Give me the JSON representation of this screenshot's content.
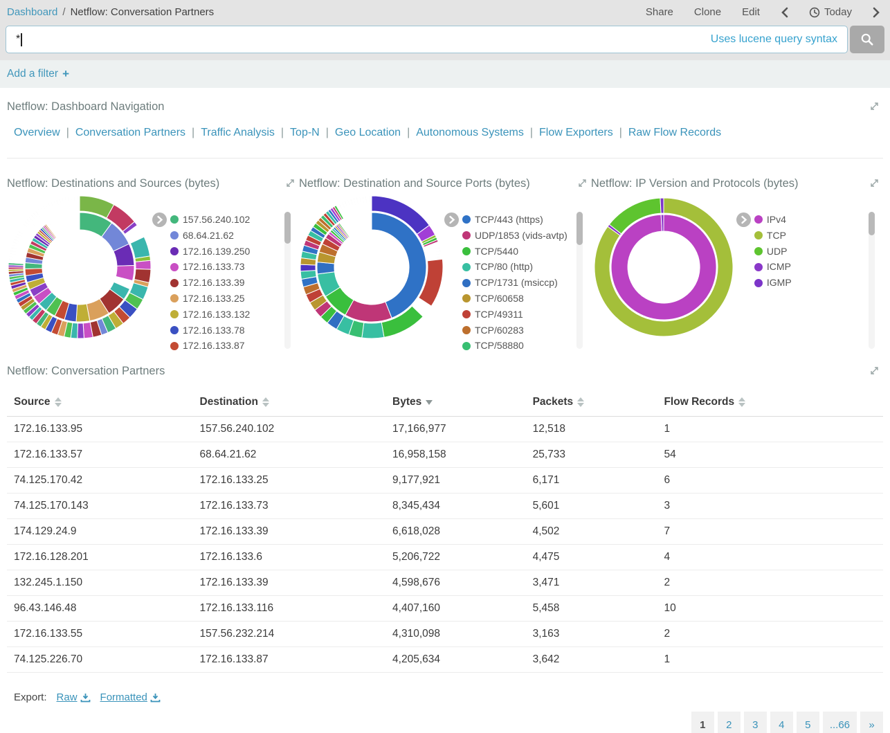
{
  "topbar": {
    "breadcrumb": {
      "root": "Dashboard",
      "separator": "/",
      "current": "Netflow: Conversation Partners"
    },
    "actions": [
      "Share",
      "Clone",
      "Edit"
    ],
    "time_label": "Today"
  },
  "query": {
    "value": "*",
    "hint": "Uses lucene query syntax"
  },
  "filter": {
    "add_label": "Add a filter"
  },
  "nav_panel": {
    "title": "Netflow: Dashboard Navigation",
    "links": [
      "Overview",
      "Conversation Partners",
      "Traffic Analysis",
      "Top-N",
      "Geo Location",
      "Autonomous Systems",
      "Flow Exporters",
      "Raw Flow Records"
    ]
  },
  "chart_data": [
    {
      "type": "sunburst",
      "title": "Netflow: Destinations and Sources (bytes)",
      "legend_position": "right",
      "legend": [
        {
          "label": "157.56.240.102",
          "color": "#43b77c"
        },
        {
          "label": "68.64.21.62",
          "color": "#7287d8"
        },
        {
          "label": "172.16.139.250",
          "color": "#6a2cb5"
        },
        {
          "label": "172.16.133.73",
          "color": "#c94fc4"
        },
        {
          "label": "172.16.133.39",
          "color": "#a13331"
        },
        {
          "label": "172.16.133.25",
          "color": "#daa05c"
        },
        {
          "label": "172.16.133.132",
          "color": "#bfae36"
        },
        {
          "label": "172.16.133.78",
          "color": "#3a50c2"
        },
        {
          "label": "172.16.133.87",
          "color": "#c34b33"
        }
      ],
      "rings": [
        {
          "r": [
            54,
            79
          ],
          "segments": [
            [
              "#43b77c",
              10
            ],
            [
              "#7287d8",
              8
            ],
            [
              "#6a2cb5",
              6.5
            ],
            [
              "#c94fc4",
              4.5
            ],
            [
              "hatch:#bbbbbb",
              2.5
            ],
            [
              "#3ab6ad",
              3.5
            ],
            [
              "#a13331",
              6
            ],
            [
              "#daa05c",
              6
            ],
            [
              "#bfae36",
              4
            ],
            [
              "#3a50c2",
              3.5
            ],
            [
              "#c34b33",
              3
            ],
            [
              "#4fc151",
              3
            ],
            [
              "#3ab6ad",
              2.8
            ],
            [
              "#c94fc4",
              2.6
            ],
            [
              "#8a3fc6",
              2.4
            ],
            [
              "#bfae36",
              2.2
            ],
            [
              "#3a50c2",
              2
            ],
            [
              "#c34b33",
              2
            ],
            [
              "#43b77c",
              1.8
            ],
            [
              "#7287d8",
              1.6
            ],
            [
              "#a13331",
              1.5
            ],
            [
              "#daa05c",
              1.4
            ],
            [
              "#4fc151",
              1.2
            ],
            [
              "#c23a62",
              1.1
            ],
            [
              "#3ab6ad",
              1.0
            ],
            [
              "#6a2cb5",
              0.9
            ],
            [
              "#8a3fc6",
              0.8
            ],
            [
              "#bfae36",
              0.7
            ],
            [
              "#c34b33",
              0.6
            ],
            [
              "#3a50c2",
              0.6
            ],
            [
              "#43b77c",
              0.5
            ],
            [
              "#c94fc4",
              0.5
            ],
            [
              "#a13331",
              0.4
            ],
            [
              "#daa05c",
              0.4
            ],
            [
              "hatch:#cccccc",
              10.5
            ]
          ]
        },
        {
          "r": [
            81,
            103
          ],
          "segments": [
            [
              "#7ab648",
              8
            ],
            [
              "#c23a62",
              6
            ],
            [
              "#8a3fc6",
              1
            ],
            [
              "hatch:#bbbbbb",
              3
            ],
            [
              "#3ab6ad",
              4.5
            ],
            [
              "#8cbf35",
              1
            ],
            [
              "#c94fc4",
              2
            ],
            [
              "#a13331",
              3
            ],
            [
              "#daa05c",
              1
            ],
            [
              "#3ab6ad",
              3
            ],
            [
              "#4fc151",
              2.5
            ],
            [
              "#3a50c2",
              2.5
            ],
            [
              "#c34b33",
              2
            ],
            [
              "#bfae36",
              2
            ],
            [
              "#43b77c",
              2
            ],
            [
              "#7287d8",
              1.5
            ],
            [
              "#a13331",
              2
            ],
            [
              "#c94fc4",
              2
            ],
            [
              "#8a3fc6",
              1.5
            ],
            [
              "#3ab6ad",
              1.5
            ],
            [
              "#4fc151",
              1.5
            ],
            [
              "#daa05c",
              1.5
            ],
            [
              "#c34b33",
              1.5
            ],
            [
              "#3a50c2",
              1.5
            ],
            [
              "#bfae36",
              1.2
            ],
            [
              "#43b77c",
              1.2
            ],
            [
              "#c23a62",
              1.2
            ],
            [
              "#3ab6ad",
              1
            ],
            [
              "#8a3fc6",
              1
            ],
            [
              "#4fc151",
              1
            ],
            [
              "#b9962f",
              1
            ],
            [
              "#bf4136",
              1
            ],
            [
              "#306fc2",
              0.9
            ],
            [
              "#c94fc4",
              0.9
            ],
            [
              "#3abf3d",
              0.8
            ],
            [
              "#daa05c",
              0.8
            ],
            [
              "#6a2cb5",
              0.8
            ],
            [
              "#c34b33",
              0.7
            ],
            [
              "#3ab6ad",
              0.7
            ],
            [
              "#4fc151",
              0.6
            ],
            [
              "#7287d8",
              0.6
            ],
            [
              "#a13331",
              0.6
            ],
            [
              "#bfae36",
              0.5
            ],
            [
              "#c23a62",
              0.5
            ],
            [
              "#8a3fc6",
              0.5
            ],
            [
              "#43b77c",
              0.5
            ],
            [
              "hatch:#cccccc",
              24
            ]
          ]
        }
      ]
    },
    {
      "type": "sunburst",
      "title": "Netflow: Destination and Source Ports (bytes)",
      "legend_position": "right",
      "legend": [
        {
          "label": "TCP/443 (https)",
          "color": "#2f72c6"
        },
        {
          "label": "UDP/1853 (vids-avtp)",
          "color": "#bf3677"
        },
        {
          "label": "TCP/5440",
          "color": "#3abf3d"
        },
        {
          "label": "TCP/80 (http)",
          "color": "#38bfa2"
        },
        {
          "label": "TCP/1731 (msiccp)",
          "color": "#306fc2"
        },
        {
          "label": "TCP/60658",
          "color": "#b9962f"
        },
        {
          "label": "TCP/49311",
          "color": "#bf4136"
        },
        {
          "label": "TCP/60283",
          "color": "#bd6f2d"
        },
        {
          "label": "TCP/58880",
          "color": "#38bf72"
        }
      ],
      "rings": [
        {
          "r": [
            54,
            79
          ],
          "segments": [
            [
              "#2f72c6",
              44
            ],
            [
              "#bf3677",
              14
            ],
            [
              "#3abf3d",
              8
            ],
            [
              "#38bfa2",
              7
            ],
            [
              "#306fc2",
              3.5
            ],
            [
              "#b9962f",
              3
            ],
            [
              "#bd6f2d",
              2.5
            ],
            [
              "#bf4136",
              2
            ],
            [
              "#bf3677",
              1.5
            ],
            [
              "#c94fc4",
              0.8
            ],
            [
              "#3abf3d",
              0.7
            ],
            [
              "#38bfa2",
              0.6
            ],
            [
              "#2f72c6",
              0.6
            ],
            [
              "#b9962f",
              0.5
            ],
            [
              "#8a3fc6",
              0.5
            ],
            [
              "#bf4136",
              0.4
            ],
            [
              "#3abf3d",
              0.4
            ],
            [
              "hatch:#cccccc",
              10
            ]
          ]
        },
        {
          "r": [
            81,
            103
          ],
          "segments": [
            [
              "#4c33c2",
              15
            ],
            [
              "#a13ed6",
              2.5
            ],
            [
              "#8cbf35",
              0.6
            ],
            [
              "#3abf3d",
              0.6
            ],
            [
              "#bf3677",
              0.5
            ],
            [
              "hatch:#bbbbbb",
              4
            ],
            [
              "#bf4136",
              11
            ],
            [
              "hatch:#cccccc",
              3
            ],
            [
              "#3abf3d",
              10
            ],
            [
              "#38bfa2",
              5
            ],
            [
              "#38bf72",
              3
            ],
            [
              "#38bfa2",
              3
            ],
            [
              "#306fc2",
              2.5
            ],
            [
              "#3abf3d",
              2
            ],
            [
              "#bf3677",
              2
            ],
            [
              "#b9962f",
              2
            ],
            [
              "#bf4136",
              2
            ],
            [
              "#bd6f2d",
              1.8
            ],
            [
              "#2f72c6",
              1.8
            ],
            [
              "#38bfa2",
              1.8
            ],
            [
              "#4c33c2",
              1.5
            ],
            [
              "#b9962f",
              1.5
            ],
            [
              "#38bfa2",
              1.5
            ],
            [
              "#2f72c6",
              1.4
            ],
            [
              "#bf3677",
              1.2
            ],
            [
              "#bf4136",
              1.2
            ],
            [
              "#38bfa2",
              1.2
            ],
            [
              "#306fc2",
              1
            ],
            [
              "#3abf3d",
              1
            ],
            [
              "#b9962f",
              0.9
            ],
            [
              "#bd6f2d",
              0.8
            ],
            [
              "#38bf72",
              0.8
            ],
            [
              "#bf4136",
              0.7
            ],
            [
              "#38bfa2",
              0.7
            ],
            [
              "#2f72c6",
              0.6
            ],
            [
              "#a13ed6",
              0.6
            ],
            [
              "#bf3677",
              0.5
            ],
            [
              "#3abf3d",
              0.5
            ],
            [
              "hatch:#cccccc",
              8.3
            ]
          ]
        }
      ]
    },
    {
      "type": "sunburst",
      "title": "Netflow: IP Version and Protocols (bytes)",
      "legend_position": "right",
      "legend": [
        {
          "label": "IPv4",
          "color": "#ba41c3"
        },
        {
          "label": "TCP",
          "color": "#a4bf3a"
        },
        {
          "label": "UDP",
          "color": "#5ec42f"
        },
        {
          "label": "ICMP",
          "color": "#8a38c9"
        },
        {
          "label": "IGMP",
          "color": "#7c35c9"
        }
      ],
      "rings": [
        {
          "r": [
            52,
            76
          ],
          "segments": [
            [
              "#ba41c3",
              99.2
            ],
            [
              "#8a38c9",
              0.8
            ]
          ]
        },
        {
          "r": [
            78,
            100
          ],
          "segments": [
            [
              "#a4bf3a",
              85
            ],
            [
              "#8a38c9",
              0.6
            ],
            [
              "#5ec42f",
              13.6
            ],
            [
              "#7c35c9",
              0.8
            ]
          ]
        }
      ]
    }
  ],
  "table_panel": {
    "title": "Netflow: Conversation Partners",
    "columns": [
      {
        "label": "Source",
        "sort": "both"
      },
      {
        "label": "Destination",
        "sort": "both"
      },
      {
        "label": "Bytes",
        "sort": "desc"
      },
      {
        "label": "Packets",
        "sort": "both"
      },
      {
        "label": "Flow Records",
        "sort": "both"
      }
    ],
    "rows": [
      [
        "172.16.133.95",
        "157.56.240.102",
        "17,166,977",
        "12,518",
        "1"
      ],
      [
        "172.16.133.57",
        "68.64.21.62",
        "16,958,158",
        "25,733",
        "54"
      ],
      [
        "74.125.170.42",
        "172.16.133.25",
        "9,177,921",
        "6,171",
        "6"
      ],
      [
        "74.125.170.143",
        "172.16.133.73",
        "8,345,434",
        "5,601",
        "3"
      ],
      [
        "174.129.24.9",
        "172.16.133.39",
        "6,618,028",
        "4,502",
        "7"
      ],
      [
        "172.16.128.201",
        "172.16.133.6",
        "5,206,722",
        "4,475",
        "4"
      ],
      [
        "132.245.1.150",
        "172.16.133.39",
        "4,598,676",
        "3,471",
        "2"
      ],
      [
        "96.43.146.48",
        "172.16.133.116",
        "4,407,160",
        "5,458",
        "10"
      ],
      [
        "172.16.133.55",
        "157.56.232.214",
        "4,310,098",
        "3,163",
        "2"
      ],
      [
        "74.125.226.70",
        "172.16.133.87",
        "4,205,634",
        "3,642",
        "1"
      ]
    ],
    "export": {
      "label": "Export:",
      "raw": "Raw",
      "formatted": "Formatted"
    },
    "pagination": [
      "1",
      "2",
      "3",
      "4",
      "5",
      "...66",
      "»"
    ]
  }
}
